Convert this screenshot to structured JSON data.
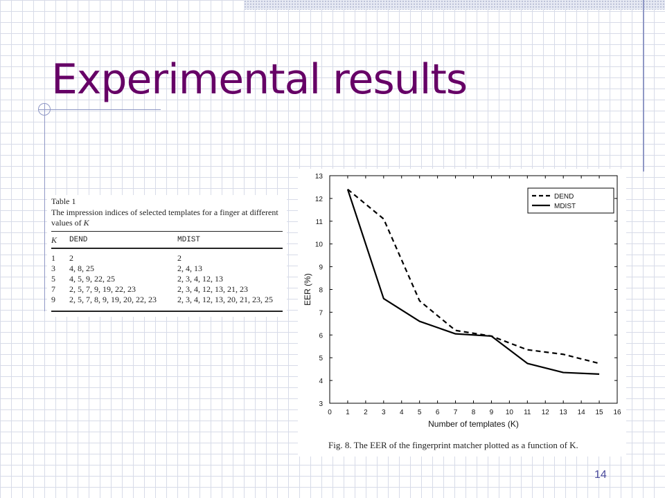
{
  "slide": {
    "title": "Experimental results",
    "number": "14"
  },
  "table": {
    "title": "Table 1",
    "caption_parts": [
      "The impression indices of selected templates for a finger at different values of ",
      "K"
    ],
    "headers": [
      "K",
      "DEND",
      "MDIST"
    ],
    "rows": [
      [
        "1",
        "2",
        "2"
      ],
      [
        "3",
        "4, 8, 25",
        "2, 4, 13"
      ],
      [
        "5",
        "4, 5, 9, 22, 25",
        "2, 3, 4, 12, 13"
      ],
      [
        "7",
        "2, 5, 7, 9, 19, 22, 23",
        "2, 3, 4, 12, 13, 21, 23"
      ],
      [
        "9",
        "2, 5, 7, 8, 9, 19, 20, 22, 23",
        "2, 3, 4, 12, 13, 20, 21, 23, 25"
      ]
    ]
  },
  "figure": {
    "caption": "Fig. 8. The EER of the fingerprint matcher plotted as a function of K."
  },
  "chart_data": {
    "type": "line",
    "title": "",
    "xlabel": "Number of templates (K)",
    "ylabel": "EER (%)",
    "xlim": [
      0,
      16
    ],
    "ylim": [
      3,
      13
    ],
    "xticks": [
      0,
      1,
      2,
      3,
      4,
      5,
      6,
      7,
      8,
      9,
      10,
      11,
      12,
      13,
      14,
      15,
      16
    ],
    "yticks": [
      3,
      4,
      5,
      6,
      7,
      8,
      9,
      10,
      11,
      12,
      13
    ],
    "grid": false,
    "legend_position": "top-right",
    "series": [
      {
        "name": "DEND",
        "style": "dashed",
        "x": [
          1,
          3,
          5,
          7,
          9,
          11,
          13,
          15
        ],
        "y": [
          12.4,
          11.1,
          7.5,
          6.2,
          5.95,
          5.35,
          5.15,
          4.75
        ]
      },
      {
        "name": "MDIST",
        "style": "solid",
        "x": [
          1,
          3,
          5,
          7,
          9,
          11,
          13,
          15
        ],
        "y": [
          12.4,
          7.6,
          6.6,
          6.05,
          5.95,
          4.75,
          4.35,
          4.28
        ]
      }
    ]
  },
  "colors": {
    "title": "#660066",
    "grid_lines": "#d7dbe8",
    "accent_lines": "#8f97c5",
    "slide_number": "#4a4a9c"
  }
}
